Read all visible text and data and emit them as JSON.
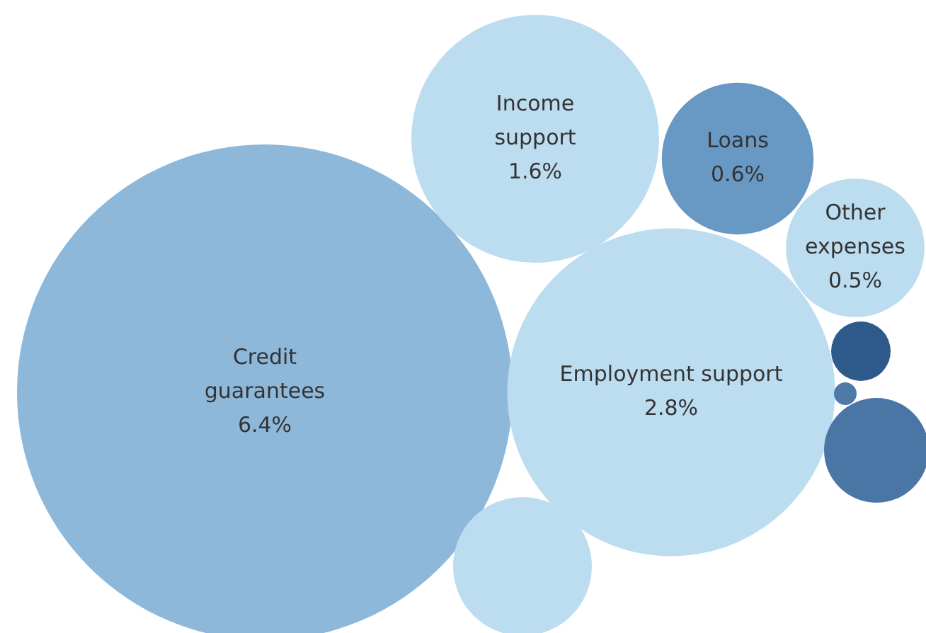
{
  "chart_data": {
    "type": "other",
    "categories": [
      "Credit guarantees",
      "Income support",
      "Loans",
      "Other expenses",
      "Employment support"
    ],
    "values": [
      6.4,
      1.6,
      0.6,
      0.5,
      2.8
    ],
    "value_labels": [
      "6.4%",
      "1.6%",
      "0.6%",
      "0.5%",
      "2.8%"
    ],
    "colors": [
      "#8db8da",
      "#bcdcf0",
      "#6898c4",
      "#bcdcf0",
      "#bcdcf0"
    ]
  }
}
